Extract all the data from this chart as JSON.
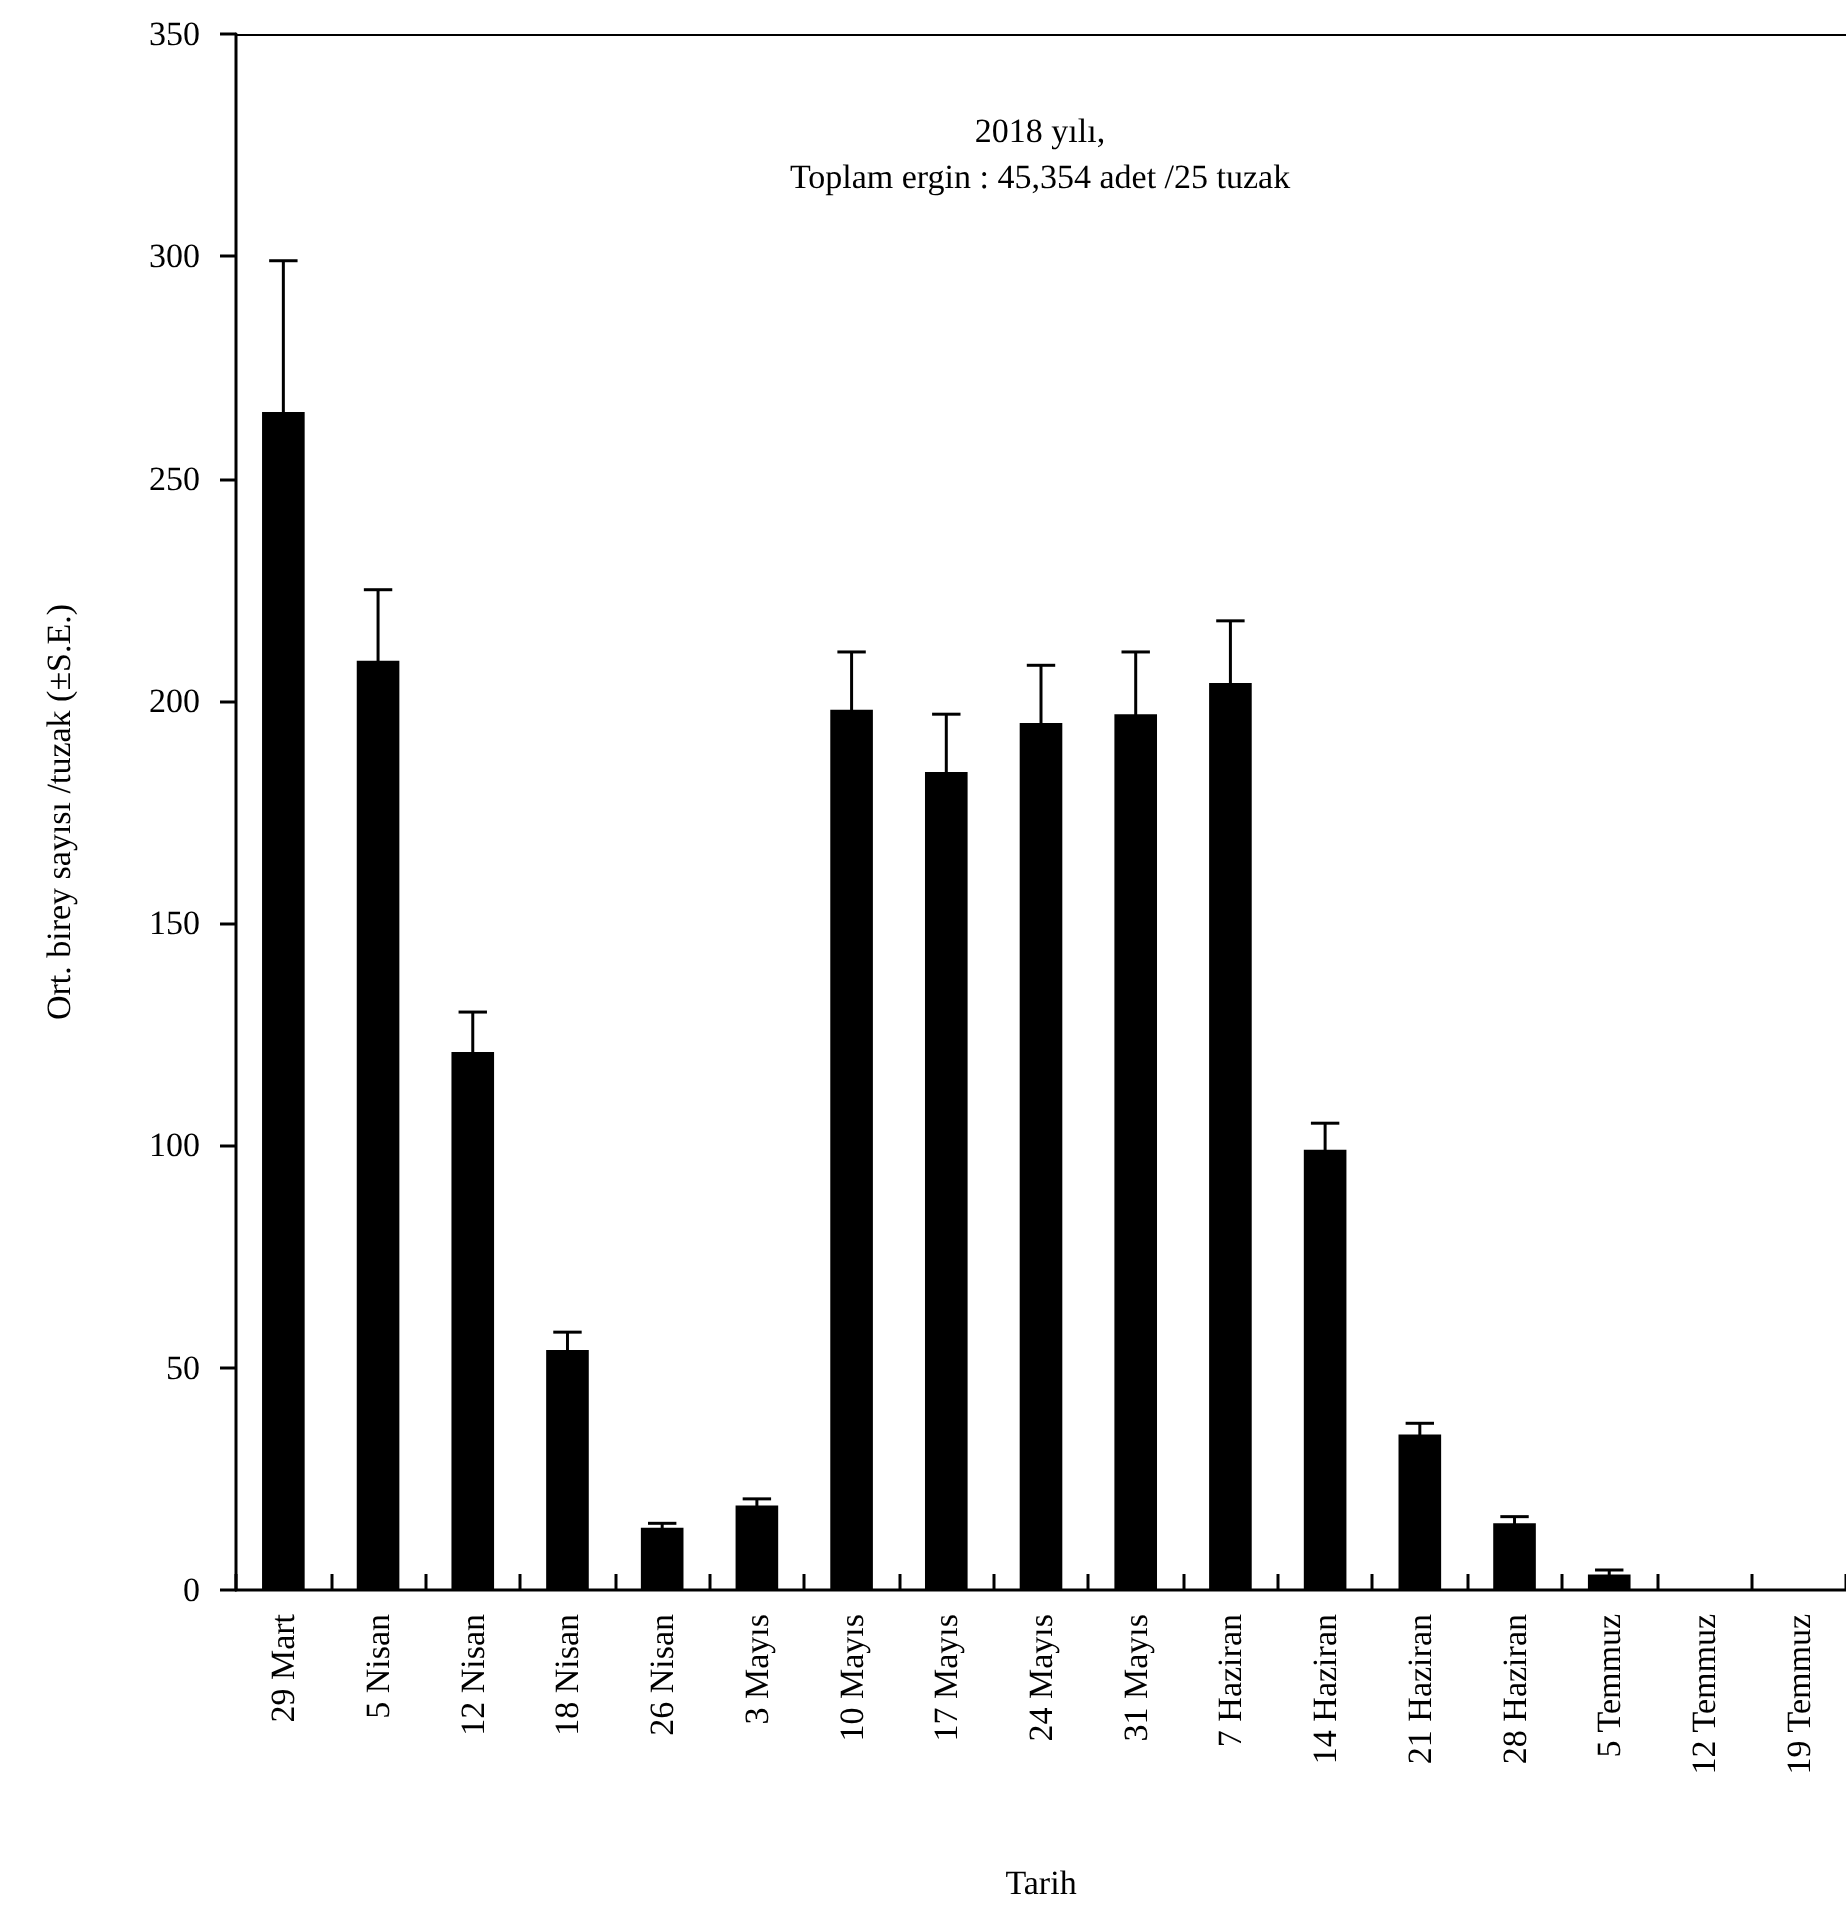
{
  "chart_data": {
    "type": "bar",
    "title": "2018 yılı,",
    "subtitle": "Toplam ergin : 45,354 adet /25 tuzak",
    "xlabel": "Tarih",
    "ylabel": "Ort. birey sayısı /tuzak (±S.E.)",
    "categories": [
      "29 Mart",
      "5 Nisan",
      "12 Nisan",
      "18 Nisan",
      "26 Nisan",
      "3 Mayıs",
      "10 Mayıs",
      "17 Mayıs",
      "24 Mayıs",
      "31 Mayıs",
      "7 Haziran",
      "14 Haziran",
      "21 Haziran",
      "28 Haziran",
      "5 Temmuz",
      "12 Temmuz",
      "19 Temmuz"
    ],
    "values": [
      265,
      209,
      121,
      54,
      14,
      19,
      198,
      184,
      195,
      197,
      204,
      99,
      35,
      15,
      3.5,
      null,
      0
    ],
    "errors": [
      34,
      16,
      9,
      4,
      1,
      1.5,
      13,
      13,
      13,
      14,
      14,
      6,
      2.5,
      1.5,
      1,
      null,
      null
    ],
    "color": "#000000",
    "ylim": [
      0,
      350
    ],
    "yticks": [
      0,
      50,
      100,
      150,
      200,
      250,
      300,
      350
    ],
    "grid": false
  }
}
